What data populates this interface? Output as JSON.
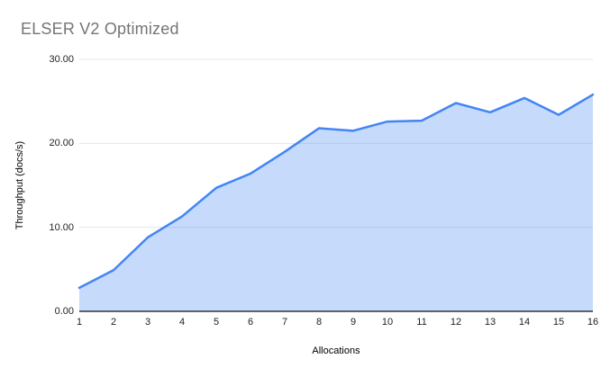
{
  "title": "ELSER V2 Optimized",
  "colors": {
    "line": "#4285f4",
    "fill": "rgba(66,133,244,0.30)",
    "grid": "#e6e6e6",
    "axis_line": "#333333",
    "title_text": "#757575",
    "tick_text": "#1f1f1f",
    "axis_title_text": "#000000",
    "background": "#ffffff"
  },
  "chart_data": {
    "type": "area",
    "title": "ELSER V2 Optimized",
    "xlabel": "Allocations",
    "ylabel": "Throughput (docs/s)",
    "x": [
      1,
      2,
      3,
      4,
      5,
      6,
      7,
      8,
      9,
      10,
      11,
      12,
      13,
      14,
      15,
      16
    ],
    "x_tick_labels": [
      "1",
      "2",
      "3",
      "4",
      "5",
      "6",
      "7",
      "8",
      "9",
      "10",
      "11",
      "12",
      "13",
      "14",
      "15",
      "16"
    ],
    "values": [
      2.8,
      4.9,
      8.8,
      11.3,
      14.7,
      16.4,
      19.0,
      21.8,
      21.5,
      22.6,
      22.7,
      24.8,
      23.7,
      25.4,
      23.4,
      25.8
    ],
    "ylim": [
      0,
      30
    ],
    "yticks": [
      {
        "value": 0,
        "label": "0.00"
      },
      {
        "value": 10,
        "label": "10.00"
      },
      {
        "value": 20,
        "label": "20.00"
      },
      {
        "value": 30,
        "label": "30.00"
      }
    ],
    "grid": "horizontal",
    "legend": "none"
  }
}
